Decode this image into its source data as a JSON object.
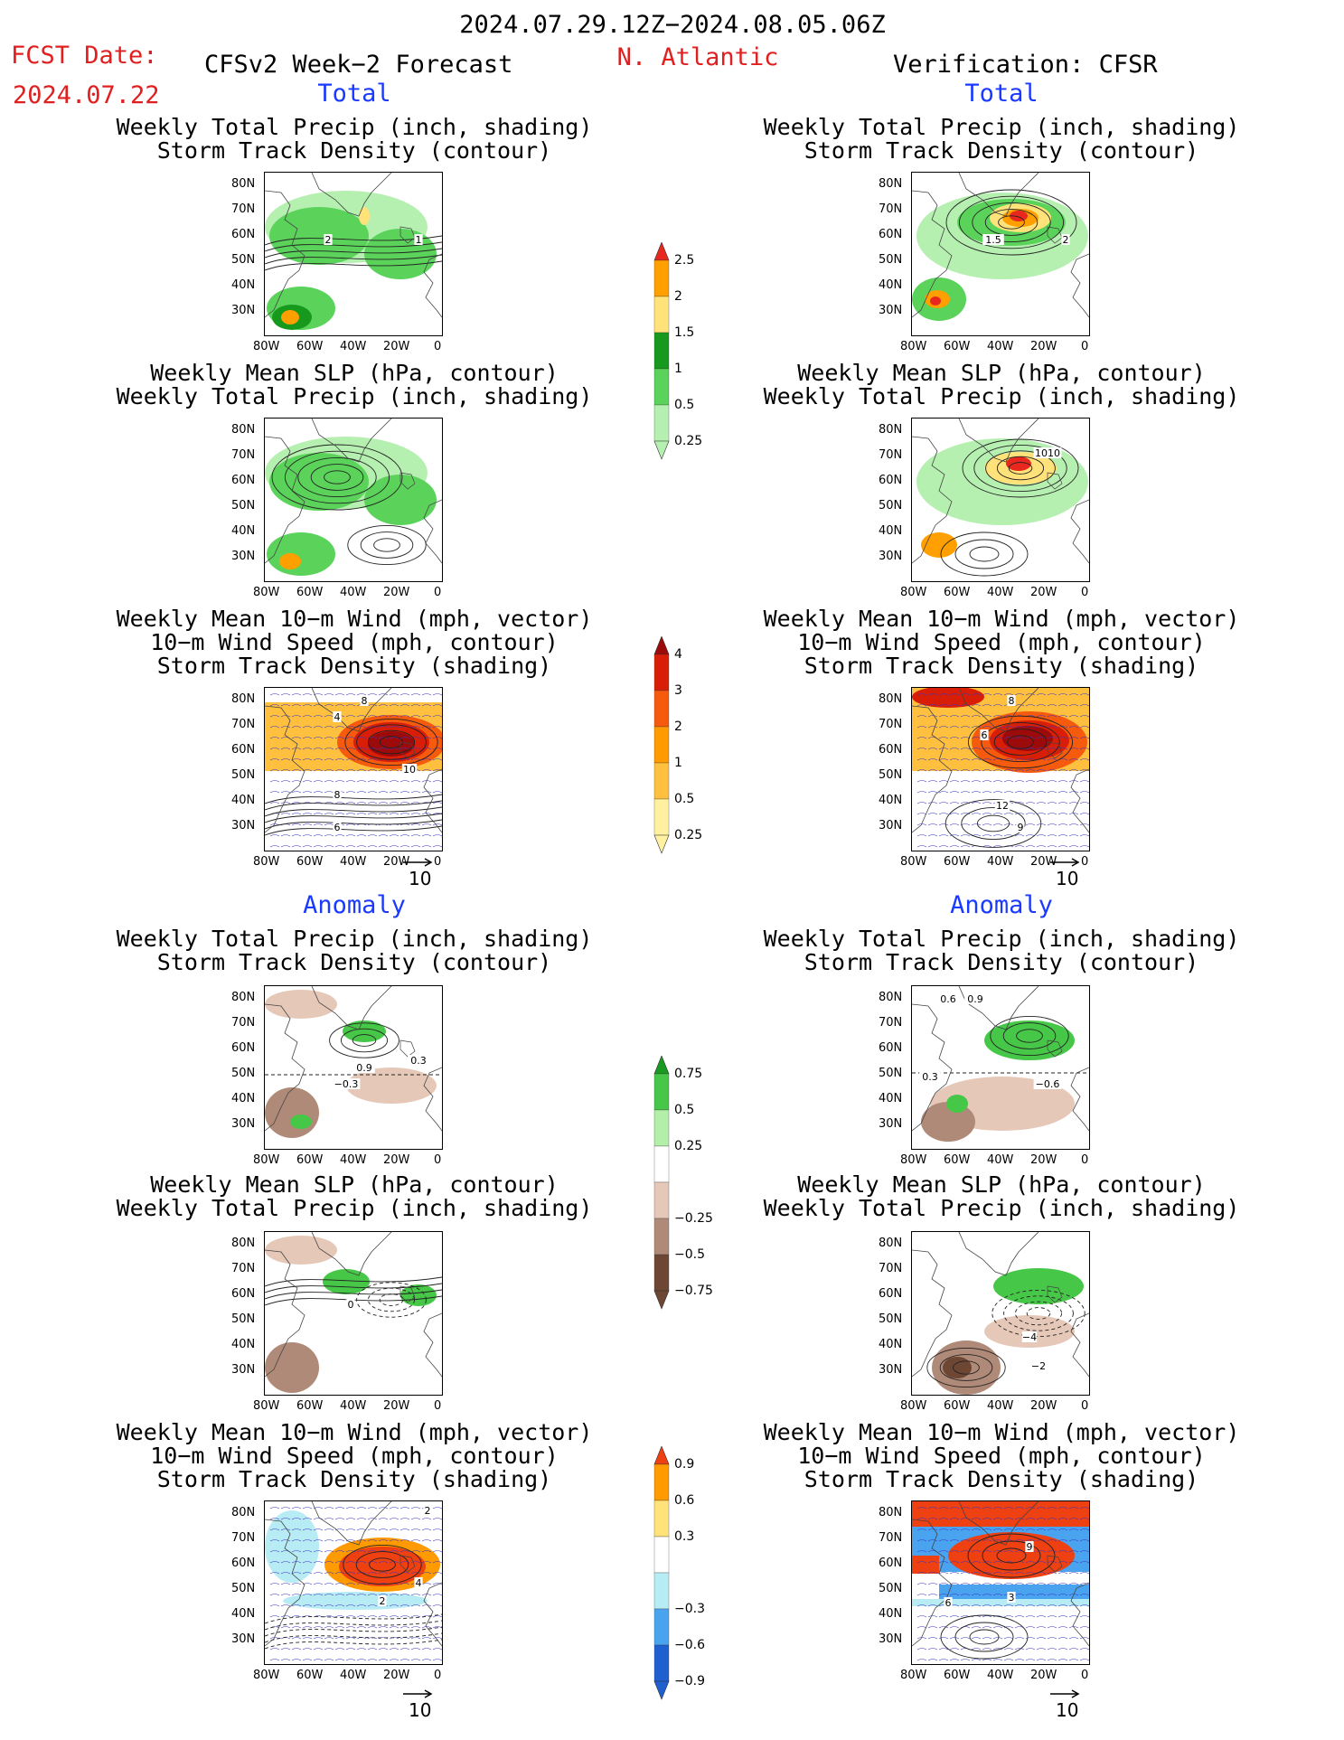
{
  "header": {
    "date_range": "2024.07.29.12Z−2024.08.05.06Z",
    "fcst_label": "FCST Date:",
    "fcst_date": "2024.07.22",
    "model_label": "CFSv2 Week−2 Forecast",
    "region": "N. Atlantic",
    "verification_label": "Verification: CFSR",
    "total_label": "Total",
    "anomaly_label": "Anomaly"
  },
  "titles": {
    "precip_storm": [
      "Weekly Total Precip (inch, shading)",
      "Storm Track Density (contour)"
    ],
    "slp_precip": [
      "Weekly Mean SLP (hPa, contour)",
      "Weekly Total Precip (inch, shading)"
    ],
    "wind_storm": [
      "Weekly Mean 10−m Wind (mph, vector)",
      "10−m Wind Speed (mph, contour)",
      "Storm Track Density (shading)"
    ]
  },
  "axes": {
    "lat_ticks": [
      "80N",
      "70N",
      "60N",
      "50N",
      "40N",
      "30N"
    ],
    "lon_ticks": [
      "80W",
      "60W",
      "40W",
      "20W",
      "0"
    ],
    "vector_ref": "10"
  },
  "colorbars": {
    "precip_total": {
      "labels": [
        "2.5",
        "2",
        "1.5",
        "1",
        "0.5",
        "0.25"
      ],
      "colors": [
        "#e8281e",
        "#ff9f00",
        "#ffe27a",
        "#17991d",
        "#5bd35b",
        "#b6f0b1"
      ]
    },
    "storm_total": {
      "labels": [
        "4",
        "3",
        "2",
        "1",
        "0.5",
        "0.25"
      ],
      "colors": [
        "#9c0a0a",
        "#d81e06",
        "#f65a0c",
        "#ff9a00",
        "#ffc040",
        "#fff1a0"
      ]
    },
    "precip_anom": {
      "labels": [
        "0.75",
        "0.5",
        "0.25",
        "−0.25",
        "−0.5",
        "−0.75"
      ],
      "colors": [
        "#1a9a22",
        "#47c747",
        "#b4efaa",
        "#ffffff",
        "#e6c8b8",
        "#b08a78",
        "#6e4634"
      ]
    },
    "storm_anom": {
      "labels": [
        "0.9",
        "0.6",
        "0.3",
        "−0.3",
        "−0.6",
        "−0.9"
      ],
      "colors": [
        "#ee4010",
        "#ff9a00",
        "#ffe27a",
        "#ffffff",
        "#b8ecf4",
        "#4aa3ee",
        "#1f60d0"
      ]
    }
  },
  "panels": {
    "fc_precip_total": {
      "labels": [
        "2",
        "1"
      ]
    },
    "ob_precip_total": {
      "labels": [
        "1.5",
        "2"
      ]
    },
    "ob_slp_total": {
      "labels": [
        "1010"
      ]
    },
    "fc_wind_total": {
      "labels": [
        "8",
        "4",
        "10",
        "8",
        "6"
      ]
    },
    "ob_wind_total": {
      "labels": [
        "8",
        "6",
        "12",
        "9"
      ]
    },
    "fc_precip_anom": {
      "labels": [
        "0.9",
        "0.3",
        "−0.3"
      ]
    },
    "ob_precip_anom": {
      "labels": [
        "0.6",
        "0.9",
        "0.3",
        "−0.6"
      ]
    },
    "fc_slp_anom": {
      "labels": [
        "0"
      ]
    },
    "ob_slp_anom": {
      "labels": [
        "−4",
        "−2"
      ]
    },
    "fc_wind_anom": {
      "labels": [
        "2",
        "4",
        "2"
      ]
    },
    "ob_wind_anom": {
      "labels": [
        "9",
        "3",
        "6"
      ]
    }
  }
}
